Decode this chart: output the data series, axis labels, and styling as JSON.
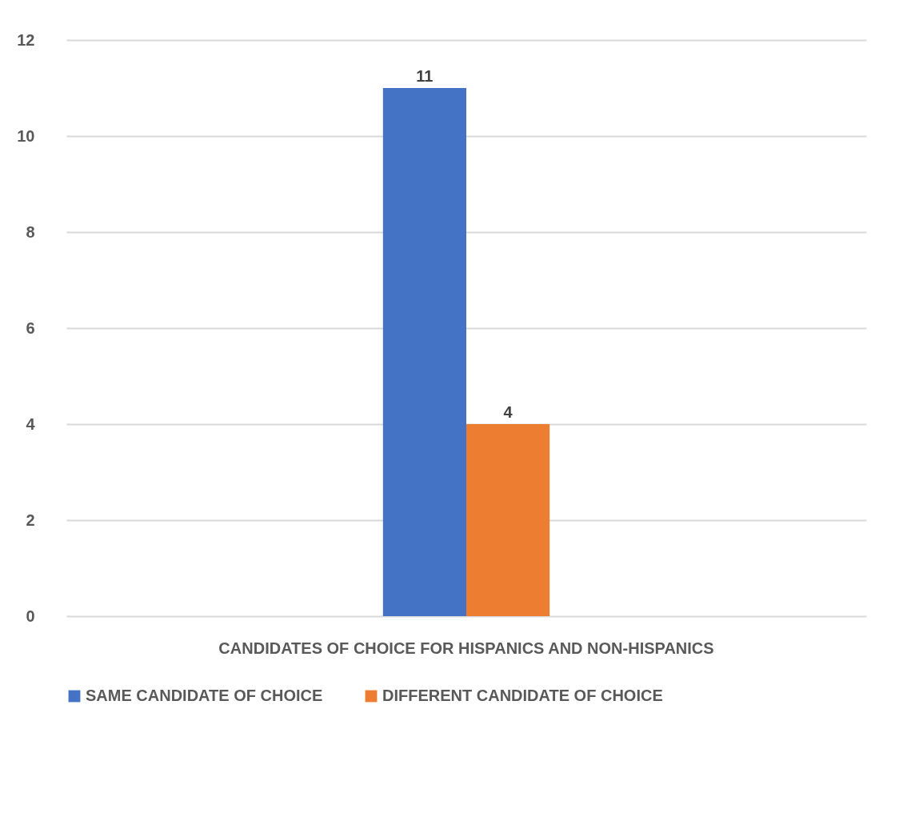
{
  "chart_data": {
    "type": "bar",
    "categories": [
      "CANDIDATES OF CHOICE FOR HISPANICS AND NON-HISPANICS"
    ],
    "series": [
      {
        "name": "SAME CANDIDATE OF CHOICE",
        "color": "#4472c4",
        "values": [
          11
        ]
      },
      {
        "name": "DIFFERENT CANDIDATE OF CHOICE",
        "color": "#ed7d31",
        "values": [
          4
        ]
      }
    ],
    "ylim": [
      0,
      12
    ],
    "yticks": [
      0,
      2,
      4,
      6,
      8,
      10,
      12
    ],
    "grid": "y",
    "legend": "bottom",
    "data_labels": true
  }
}
